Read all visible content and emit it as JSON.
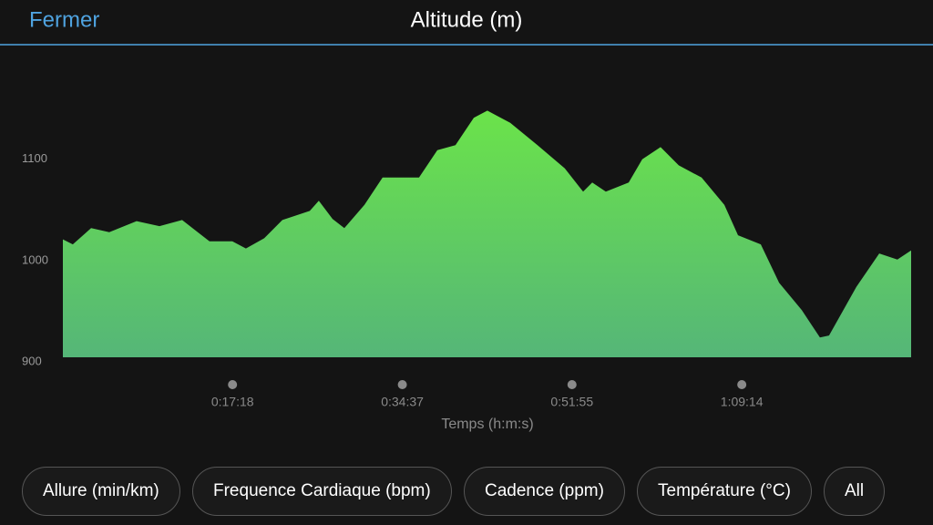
{
  "header": {
    "close": "Fermer"
  },
  "chart_data": {
    "type": "area",
    "title": "Altitude (m)",
    "xlabel": "Temps (h:m:s)",
    "x": [
      0,
      61,
      173,
      284,
      451,
      591,
      730,
      897,
      1037,
      1120,
      1232,
      1343,
      1511,
      1566,
      1650,
      1722,
      1845,
      1956,
      2068,
      2179,
      2291,
      2402,
      2514,
      2597,
      2737,
      2904,
      3071,
      3183,
      3239,
      3322,
      3462,
      3545,
      3657,
      3768,
      3908,
      4047,
      4131,
      4270,
      4382,
      4521,
      4632,
      4688,
      4855,
      4995,
      5106,
      5190
    ],
    "values": [
      1021,
      1016,
      1032,
      1028,
      1039,
      1034,
      1040,
      1019,
      1019,
      1012,
      1022,
      1040,
      1049,
      1059,
      1041,
      1032,
      1055,
      1082,
      1082,
      1082,
      1109,
      1114,
      1141,
      1148,
      1136,
      1114,
      1091,
      1068,
      1077,
      1068,
      1077,
      1100,
      1112,
      1094,
      1082,
      1055,
      1025,
      1016,
      978,
      951,
      924,
      926,
      974,
      1007,
      1001,
      1010
    ],
    "color": "#6be34a",
    "xlim": [
      0,
      5190
    ],
    "xticks": [
      {
        "value": 1038,
        "label": "0:17:18"
      },
      {
        "value": 2077,
        "label": "0:34:37"
      },
      {
        "value": 3115,
        "label": "0:51:55"
      },
      {
        "value": 4154,
        "label": "1:09:14"
      }
    ],
    "ylim": [
      900,
      1170
    ],
    "yticks": [
      900,
      1000,
      1100
    ]
  },
  "buttons": [
    "Allure (min/km)",
    "Frequence Cardiaque (bpm)",
    "Cadence (ppm)",
    "Température (°C)",
    "All"
  ]
}
